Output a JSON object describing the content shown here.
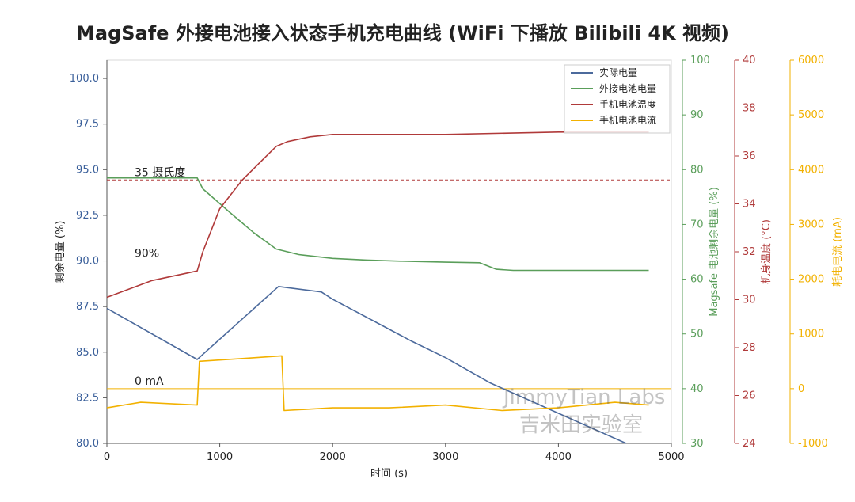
{
  "chart_data": {
    "type": "line",
    "title": "MagSafe 外接电池接入状态手机充电曲线 (WiFi 下播放 Bilibili 4K 视频)",
    "xlabel": "时间 (s)",
    "xlim": [
      0,
      5000
    ],
    "xticks": [
      "0",
      "1000",
      "2000",
      "3000",
      "4000",
      "5000"
    ],
    "grid": false,
    "legend_position": "top-right",
    "axes": [
      {
        "id": "y1",
        "label": "剩余电量 (%)",
        "range": [
          80,
          101
        ],
        "color": "#3a5f9a",
        "ticks": [
          "80.0",
          "82.5",
          "85.0",
          "87.5",
          "90.0",
          "92.5",
          "95.0",
          "97.5",
          "100.0"
        ]
      },
      {
        "id": "y2",
        "label": "Magsafe 电池剩余电量 (%)",
        "range": [
          30,
          100
        ],
        "color": "#5a9e5a",
        "ticks": [
          "30",
          "40",
          "50",
          "60",
          "70",
          "80",
          "90",
          "100"
        ]
      },
      {
        "id": "y3",
        "label": "机身温度 (°C)",
        "range": [
          24,
          40
        ],
        "color": "#b03a3a",
        "ticks": [
          "24",
          "26",
          "28",
          "30",
          "32",
          "34",
          "36",
          "38",
          "40"
        ]
      },
      {
        "id": "y4",
        "label": "耗电电流 (mA)",
        "range": [
          -1000,
          6000
        ],
        "color": "#f2b100",
        "ticks": [
          "-1000",
          "0",
          "1000",
          "2000",
          "3000",
          "4000",
          "5000",
          "6000"
        ]
      }
    ],
    "series": [
      {
        "name": "实际电量",
        "axis": "y1",
        "color": "#4c6a9c",
        "x": [
          0,
          800,
          1520,
          1900,
          2000,
          2700,
          3000,
          3400,
          4200,
          4600
        ],
        "y": [
          87.4,
          84.6,
          88.6,
          88.3,
          87.9,
          85.6,
          84.7,
          83.3,
          81.1,
          80.0
        ]
      },
      {
        "name": "外接电池电量",
        "axis": "y2",
        "color": "#5a9e5a",
        "x": [
          0,
          800,
          850,
          1100,
          1300,
          1500,
          1700,
          2000,
          2300,
          2600,
          3000,
          3300,
          3450,
          3600,
          4800
        ],
        "y": [
          78.5,
          78.5,
          76.5,
          72,
          68.5,
          65.5,
          64.5,
          63.8,
          63.5,
          63.3,
          63.1,
          63.0,
          61.8,
          61.6,
          61.6
        ]
      },
      {
        "name": "手机电池温度",
        "axis": "y3",
        "color": "#b03a3a",
        "x": [
          0,
          400,
          800,
          850,
          1000,
          1200,
          1350,
          1500,
          1600,
          1800,
          2000,
          2500,
          3000,
          4000,
          4800
        ],
        "y": [
          30.1,
          30.8,
          31.2,
          32.0,
          33.8,
          35.0,
          35.7,
          36.4,
          36.6,
          36.8,
          36.9,
          36.9,
          36.9,
          37.0,
          37.0
        ]
      },
      {
        "name": "手机电池电流",
        "axis": "y4",
        "color": "#f2b100",
        "x": [
          0,
          300,
          800,
          820,
          1200,
          1550,
          1570,
          2000,
          2500,
          3000,
          3500,
          4000,
          4500,
          4800
        ],
        "y": [
          -350,
          -250,
          -300,
          500,
          550,
          600,
          -400,
          -350,
          -350,
          -300,
          -400,
          -350,
          -250,
          -300
        ]
      }
    ],
    "reference_lines": [
      {
        "label": "35 摄氏度",
        "axis": "y3",
        "value": 35,
        "color": "#b03a3a"
      },
      {
        "label": "90%",
        "axis": "y1",
        "value": 90,
        "color": "#3a5f9a"
      },
      {
        "label": "0 mA",
        "axis": "y4",
        "value": 0,
        "color": "#f2b100"
      }
    ],
    "watermark": [
      "JimmyTian Labs",
      "吉米田实验室"
    ]
  }
}
